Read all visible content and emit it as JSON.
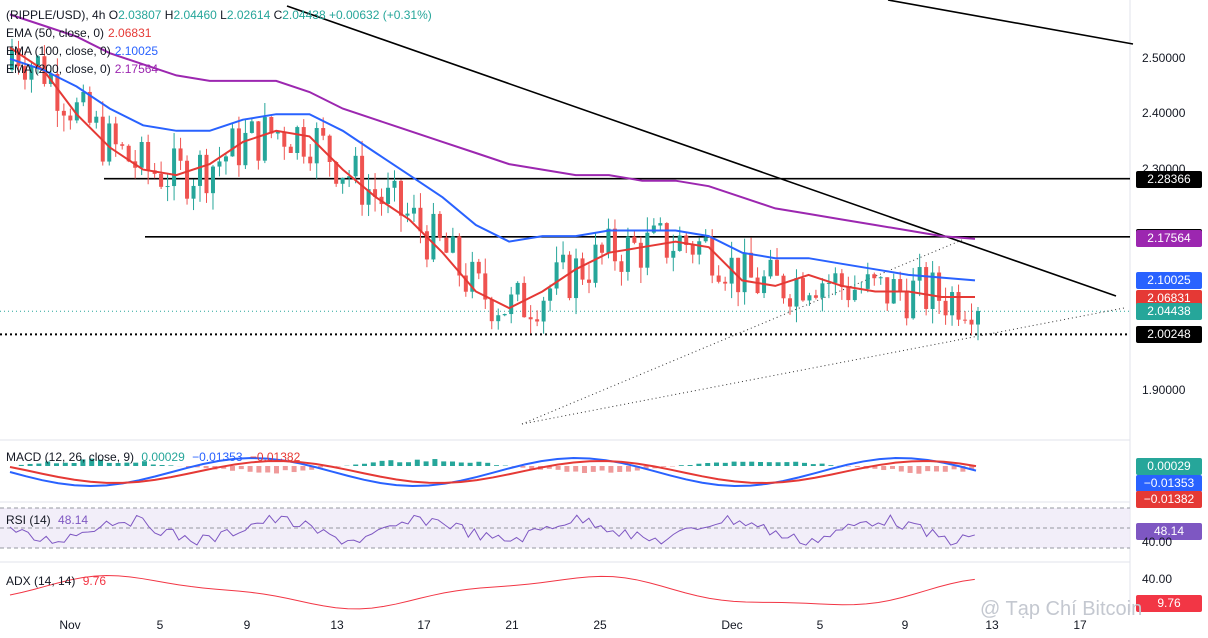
{
  "header": {
    "symbol": "(RIPPLE/USD), 4h",
    "ohlc": [
      {
        "k": "O",
        "v": "2.03807"
      },
      {
        "k": "H",
        "v": "2.04460"
      },
      {
        "k": "L",
        "v": "2.02614"
      },
      {
        "k": "C",
        "v": "2.04438"
      }
    ],
    "change": "+0.00632 (+0.31%)"
  },
  "indicators": [
    {
      "name": "EMA (50, close, 0)",
      "value": "2.06831",
      "color": "#e53935"
    },
    {
      "name": "EMA (100, close, 0)",
      "value": "2.10025",
      "color": "#2962ff"
    },
    {
      "name": "EMA (200, close, 0)",
      "value": "2.17564",
      "color": "#9c27b0"
    }
  ],
  "macd": {
    "name": "MACD (12, 26, close, 9)",
    "values": [
      "0.00029",
      "−0.01353",
      "−0.01382"
    ],
    "colors": [
      "#26a69a",
      "#2962ff",
      "#e53935"
    ]
  },
  "rsi": {
    "name": "RSI (14)",
    "value": "48.14",
    "color": "#7e57c2"
  },
  "adx": {
    "name": "ADX (14, 14)",
    "value": "9.76",
    "color": "#f23645"
  },
  "price_axis": [
    "2.50000",
    "2.40000",
    "2.30000",
    "1.90000"
  ],
  "price_tags": [
    {
      "value": "2.28366",
      "bg": "#000000"
    },
    {
      "value": "2.17876",
      "bg": "#000000"
    },
    {
      "value": "2.17564",
      "bg": "#9c27b0"
    },
    {
      "value": "2.10025",
      "bg": "#2962ff"
    },
    {
      "value": "2.06831",
      "bg": "#e53935"
    },
    {
      "value": "2.04438",
      "bg": "#26a69a"
    },
    {
      "value": "2.00248",
      "bg": "#000000"
    }
  ],
  "macd_tags": [
    {
      "value": "0.00029",
      "bg": "#26a69a"
    },
    {
      "value": "−0.01353",
      "bg": "#2962ff"
    },
    {
      "value": "−0.01382",
      "bg": "#e53935"
    }
  ],
  "rsi_tags": [
    {
      "value": "48.14",
      "bg": "#7e57c2"
    }
  ],
  "rsi_axis": [
    "40.00"
  ],
  "adx_axis": [
    "40.00"
  ],
  "adx_tags": [
    {
      "value": "9.76",
      "bg": "#f23645"
    }
  ],
  "date_labels": [
    "Nov",
    "5",
    "9",
    "13",
    "17",
    "21",
    "25",
    "Dec",
    "5",
    "9",
    "13",
    "17"
  ],
  "watermark": "@ Tạp Chí Bitcoin",
  "chart_data": {
    "type": "line",
    "series_meta": [
      {
        "name": "EMA (50, close, 0)",
        "color": "#e53935"
      },
      {
        "name": "EMA (100, close, 0)",
        "color": "#2962ff"
      },
      {
        "name": "EMA (200, close, 0)",
        "color": "#9c27b0"
      }
    ],
    "ylim": [
      1.83,
      2.57
    ],
    "horizontal_levels": [
      2.28366,
      2.17876,
      2.00248
    ],
    "ema50": [
      2.52,
      2.48,
      2.4,
      2.34,
      2.3,
      2.29,
      2.31,
      2.35,
      2.37,
      2.36,
      2.3,
      2.25,
      2.21,
      2.15,
      2.08,
      2.05,
      2.08,
      2.12,
      2.15,
      2.16,
      2.17,
      2.16,
      2.1,
      2.09,
      2.11,
      2.09,
      2.08,
      2.08,
      2.07,
      2.07
    ],
    "ema100": [
      2.5,
      2.48,
      2.45,
      2.41,
      2.38,
      2.37,
      2.37,
      2.39,
      2.4,
      2.4,
      2.37,
      2.33,
      2.29,
      2.25,
      2.2,
      2.17,
      2.18,
      2.18,
      2.19,
      2.19,
      2.19,
      2.18,
      2.15,
      2.14,
      2.14,
      2.13,
      2.12,
      2.11,
      2.105,
      2.1
    ],
    "ema200": [
      2.58,
      2.56,
      2.54,
      2.51,
      2.49,
      2.47,
      2.46,
      2.46,
      2.46,
      2.44,
      2.41,
      2.39,
      2.37,
      2.35,
      2.33,
      2.31,
      2.3,
      2.29,
      2.29,
      2.28,
      2.28,
      2.27,
      2.25,
      2.23,
      2.22,
      2.21,
      2.2,
      2.19,
      2.18,
      2.175
    ]
  }
}
